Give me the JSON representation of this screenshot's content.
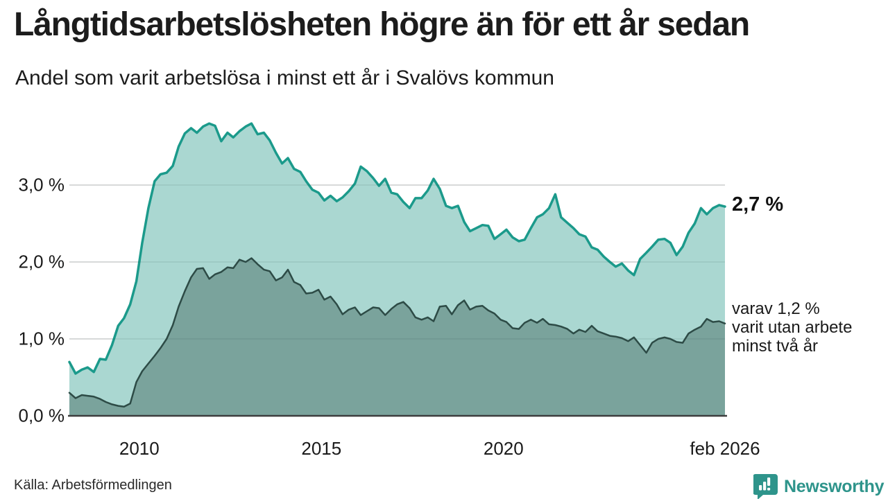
{
  "header": {
    "title": "Långtidsarbetslösheten högre än för ett år sedan",
    "subtitle": "Andel som varit arbetslösa i minst ett år i Svalövs kommun"
  },
  "chart_data": {
    "type": "area",
    "title": "Långtidsarbetslösheten högre än för ett år sedan",
    "subtitle": "Andel som varit arbetslösa i minst ett år i Svalövs kommun",
    "unit": "percent",
    "xlim": [
      2008.08,
      2026.08
    ],
    "ylim": [
      0,
      3.95
    ],
    "grid": true,
    "grid_color": "#e0e0e0",
    "axis_color": "#3d3d3d",
    "x": [
      2008.08,
      2008.25,
      2008.42,
      2008.58,
      2008.75,
      2008.92,
      2009.08,
      2009.25,
      2009.42,
      2009.58,
      2009.75,
      2009.92,
      2010.08,
      2010.25,
      2010.42,
      2010.58,
      2010.75,
      2010.92,
      2011.08,
      2011.25,
      2011.42,
      2011.58,
      2011.75,
      2011.92,
      2012.08,
      2012.25,
      2012.42,
      2012.58,
      2012.75,
      2012.92,
      2013.08,
      2013.25,
      2013.42,
      2013.58,
      2013.75,
      2013.92,
      2014.08,
      2014.25,
      2014.42,
      2014.58,
      2014.75,
      2014.92,
      2015.08,
      2015.25,
      2015.42,
      2015.58,
      2015.75,
      2015.92,
      2016.08,
      2016.25,
      2016.42,
      2016.58,
      2016.75,
      2016.92,
      2017.08,
      2017.25,
      2017.42,
      2017.58,
      2017.75,
      2017.92,
      2018.08,
      2018.25,
      2018.42,
      2018.58,
      2018.75,
      2018.92,
      2019.08,
      2019.25,
      2019.42,
      2019.58,
      2019.75,
      2019.92,
      2020.08,
      2020.25,
      2020.42,
      2020.58,
      2020.75,
      2020.92,
      2021.08,
      2021.25,
      2021.42,
      2021.58,
      2021.75,
      2021.92,
      2022.08,
      2022.25,
      2022.42,
      2022.58,
      2022.75,
      2022.92,
      2023.08,
      2023.25,
      2023.42,
      2023.58,
      2023.75,
      2023.92,
      2024.08,
      2024.25,
      2024.42,
      2024.58,
      2024.75,
      2024.92,
      2025.08,
      2025.25,
      2025.42,
      2025.58,
      2025.75,
      2025.92,
      2026.08
    ],
    "series": [
      {
        "name": "Andel arbetslösa minst ett år",
        "line_color": "#1b9a8b",
        "fill_color": "#aad7d1",
        "line_width": 3.5,
        "values": [
          0.7,
          0.55,
          0.6,
          0.63,
          0.57,
          0.74,
          0.73,
          0.92,
          1.17,
          1.27,
          1.45,
          1.75,
          2.25,
          2.7,
          3.05,
          3.14,
          3.16,
          3.25,
          3.5,
          3.67,
          3.74,
          3.68,
          3.76,
          3.8,
          3.77,
          3.57,
          3.68,
          3.62,
          3.7,
          3.76,
          3.8,
          3.66,
          3.68,
          3.58,
          3.42,
          3.28,
          3.35,
          3.21,
          3.17,
          3.05,
          2.94,
          2.9,
          2.8,
          2.86,
          2.79,
          2.84,
          2.92,
          3.02,
          3.24,
          3.18,
          3.09,
          2.99,
          3.08,
          2.9,
          2.88,
          2.78,
          2.7,
          2.83,
          2.83,
          2.93,
          3.08,
          2.95,
          2.73,
          2.7,
          2.73,
          2.52,
          2.4,
          2.44,
          2.48,
          2.47,
          2.3,
          2.36,
          2.42,
          2.32,
          2.27,
          2.29,
          2.44,
          2.58,
          2.62,
          2.7,
          2.88,
          2.58,
          2.51,
          2.44,
          2.36,
          2.33,
          2.19,
          2.16,
          2.07,
          2.0,
          1.94,
          1.98,
          1.89,
          1.83,
          2.04,
          2.12,
          2.2,
          2.29,
          2.3,
          2.25,
          2.09,
          2.2,
          2.38,
          2.5,
          2.7,
          2.62,
          2.7,
          2.74,
          2.72
        ]
      },
      {
        "name": "Andel arbetslösa minst två år",
        "line_color": "#2d4b46",
        "fill_color": "#7aa39c",
        "line_width": 2.5,
        "values": [
          0.3,
          0.23,
          0.27,
          0.26,
          0.25,
          0.22,
          0.18,
          0.15,
          0.13,
          0.12,
          0.16,
          0.44,
          0.58,
          0.68,
          0.78,
          0.88,
          1.0,
          1.18,
          1.42,
          1.62,
          1.8,
          1.91,
          1.92,
          1.78,
          1.84,
          1.87,
          1.93,
          1.92,
          2.03,
          2.0,
          2.05,
          1.97,
          1.9,
          1.88,
          1.76,
          1.8,
          1.9,
          1.74,
          1.7,
          1.59,
          1.6,
          1.64,
          1.51,
          1.55,
          1.45,
          1.32,
          1.38,
          1.41,
          1.31,
          1.36,
          1.41,
          1.4,
          1.31,
          1.39,
          1.45,
          1.48,
          1.4,
          1.28,
          1.25,
          1.28,
          1.23,
          1.42,
          1.43,
          1.32,
          1.44,
          1.5,
          1.38,
          1.42,
          1.43,
          1.37,
          1.33,
          1.25,
          1.22,
          1.14,
          1.13,
          1.21,
          1.25,
          1.21,
          1.26,
          1.19,
          1.18,
          1.16,
          1.13,
          1.07,
          1.12,
          1.09,
          1.17,
          1.1,
          1.07,
          1.04,
          1.03,
          1.01,
          0.97,
          1.02,
          0.92,
          0.82,
          0.95,
          1.0,
          1.02,
          1.0,
          0.96,
          0.95,
          1.07,
          1.12,
          1.16,
          1.26,
          1.22,
          1.23,
          1.2
        ]
      }
    ],
    "y_ticks": [
      {
        "value": 0,
        "label": "0,0 %"
      },
      {
        "value": 1,
        "label": "1,0 %"
      },
      {
        "value": 2,
        "label": "2,0 %"
      },
      {
        "value": 3,
        "label": "3,0 %"
      }
    ],
    "x_ticks": [
      {
        "value": 2010,
        "label": "2010"
      },
      {
        "value": 2015,
        "label": "2015"
      },
      {
        "value": 2020,
        "label": "2020"
      },
      {
        "value": 2026.08,
        "label": "feb 2026"
      }
    ],
    "annotations": {
      "last_total": {
        "text": "2,7 %",
        "value": 2.7
      },
      "last_two_year": {
        "line1": "varav 1,2 %",
        "line2": "varit utan arbete",
        "line3": "minst två år",
        "value": 1.2
      }
    }
  },
  "footer": {
    "source": "Källa: Arbetsförmedlingen"
  },
  "brand": {
    "name": "Newsworthy",
    "color": "#2e948b"
  }
}
